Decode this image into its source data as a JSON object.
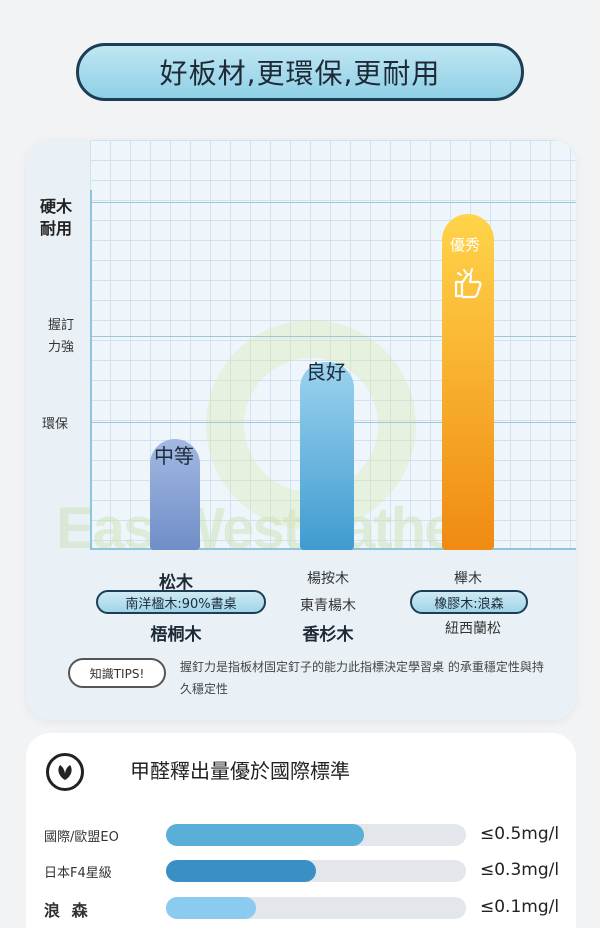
{
  "header": {
    "title": "好板材,更環保,更耐用"
  },
  "chart": {
    "y_labels": {
      "top": [
        "硬木",
        "耐用"
      ],
      "mid": [
        "握訂",
        "力強"
      ],
      "low": "環保"
    },
    "watermark": "EastWestGather",
    "bars": [
      {
        "label": "中等",
        "level": 0.33,
        "color": "#7f9dd0"
      },
      {
        "label": "良好",
        "level": 0.56,
        "color": "#5eaedb"
      },
      {
        "label": "優秀",
        "level": 1.0,
        "color": "#f39a1e"
      }
    ],
    "materials": {
      "col1": {
        "top": "松木",
        "pill": "南洋楹木:90%書桌",
        "bottom": "梧桐木"
      },
      "col2": {
        "top": "楊按木",
        "mid": "東青楊木",
        "bottom": "香杉木"
      },
      "col3": {
        "top": "櫸木",
        "pill": "橡膠木:浪森",
        "bottom": "紐西蘭松"
      }
    },
    "tips": {
      "badge": "知識TIPS!",
      "text": "握釘力是指板材固定釘子的能力此指標決定學習桌 的承重穩定性與持久穩定性"
    }
  },
  "emission": {
    "title": "甲醛釋出量優於國際標準",
    "rows": [
      {
        "label": "國際/歐盟EO",
        "value": "≤0.5mg/l",
        "ratio": 0.66,
        "color": "#5aafd9"
      },
      {
        "label": "日本F4星級",
        "value": "≤0.3mg/l",
        "ratio": 0.5,
        "color": "#3a8fc4"
      },
      {
        "label": "浪 森",
        "value": "≤0.1mg/l",
        "ratio": 0.3,
        "color": "#8ccbf0"
      }
    ]
  }
}
